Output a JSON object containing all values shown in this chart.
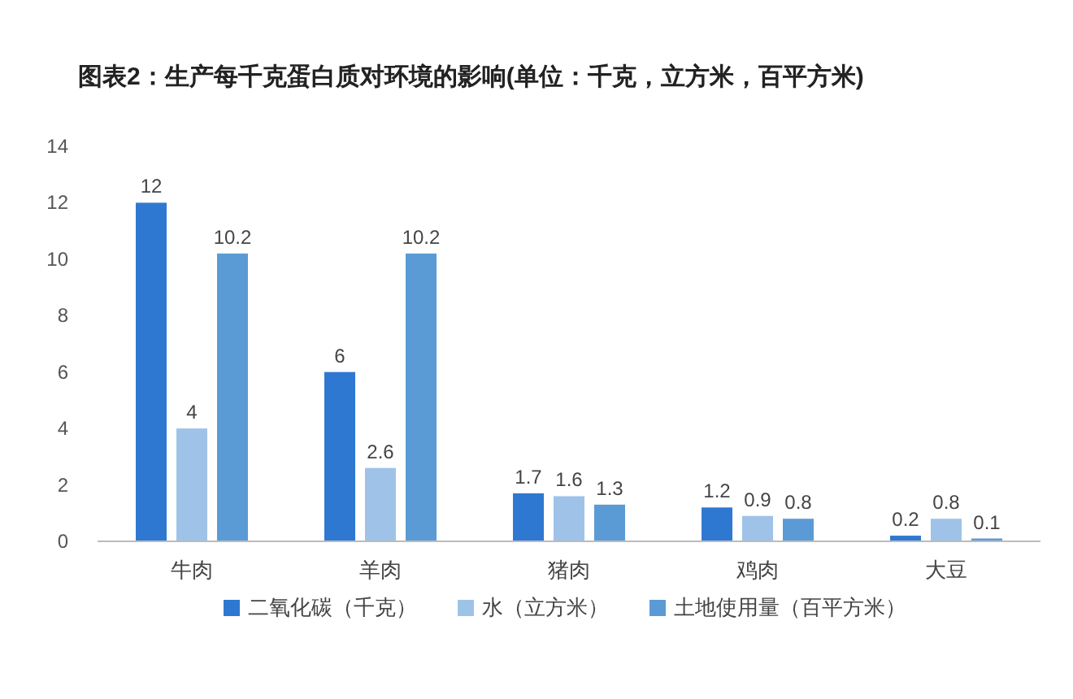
{
  "chart_data": {
    "type": "bar",
    "title": "图表2：生产每千克蛋白质对环境的影响(单位：千克，立方米，百平方米)",
    "categories": [
      "牛肉",
      "羊肉",
      "猪肉",
      "鸡肉",
      "大豆"
    ],
    "series": [
      {
        "name": "二氧化碳（千克）",
        "color": "#2f78d2",
        "values": [
          12,
          6,
          1.7,
          1.2,
          0.2
        ]
      },
      {
        "name": "水（立方米）",
        "color": "#9fc3e8",
        "values": [
          4,
          2.6,
          1.6,
          0.9,
          0.8
        ]
      },
      {
        "name": "土地使用量（百平方米）",
        "color": "#5b9bd5",
        "values": [
          10.2,
          10.2,
          1.3,
          0.8,
          0.1
        ]
      }
    ],
    "ylim": [
      0,
      14
    ],
    "yticks": [
      0,
      2,
      4,
      6,
      8,
      10,
      12,
      14
    ],
    "data_labels": true,
    "legend": "bottom"
  }
}
